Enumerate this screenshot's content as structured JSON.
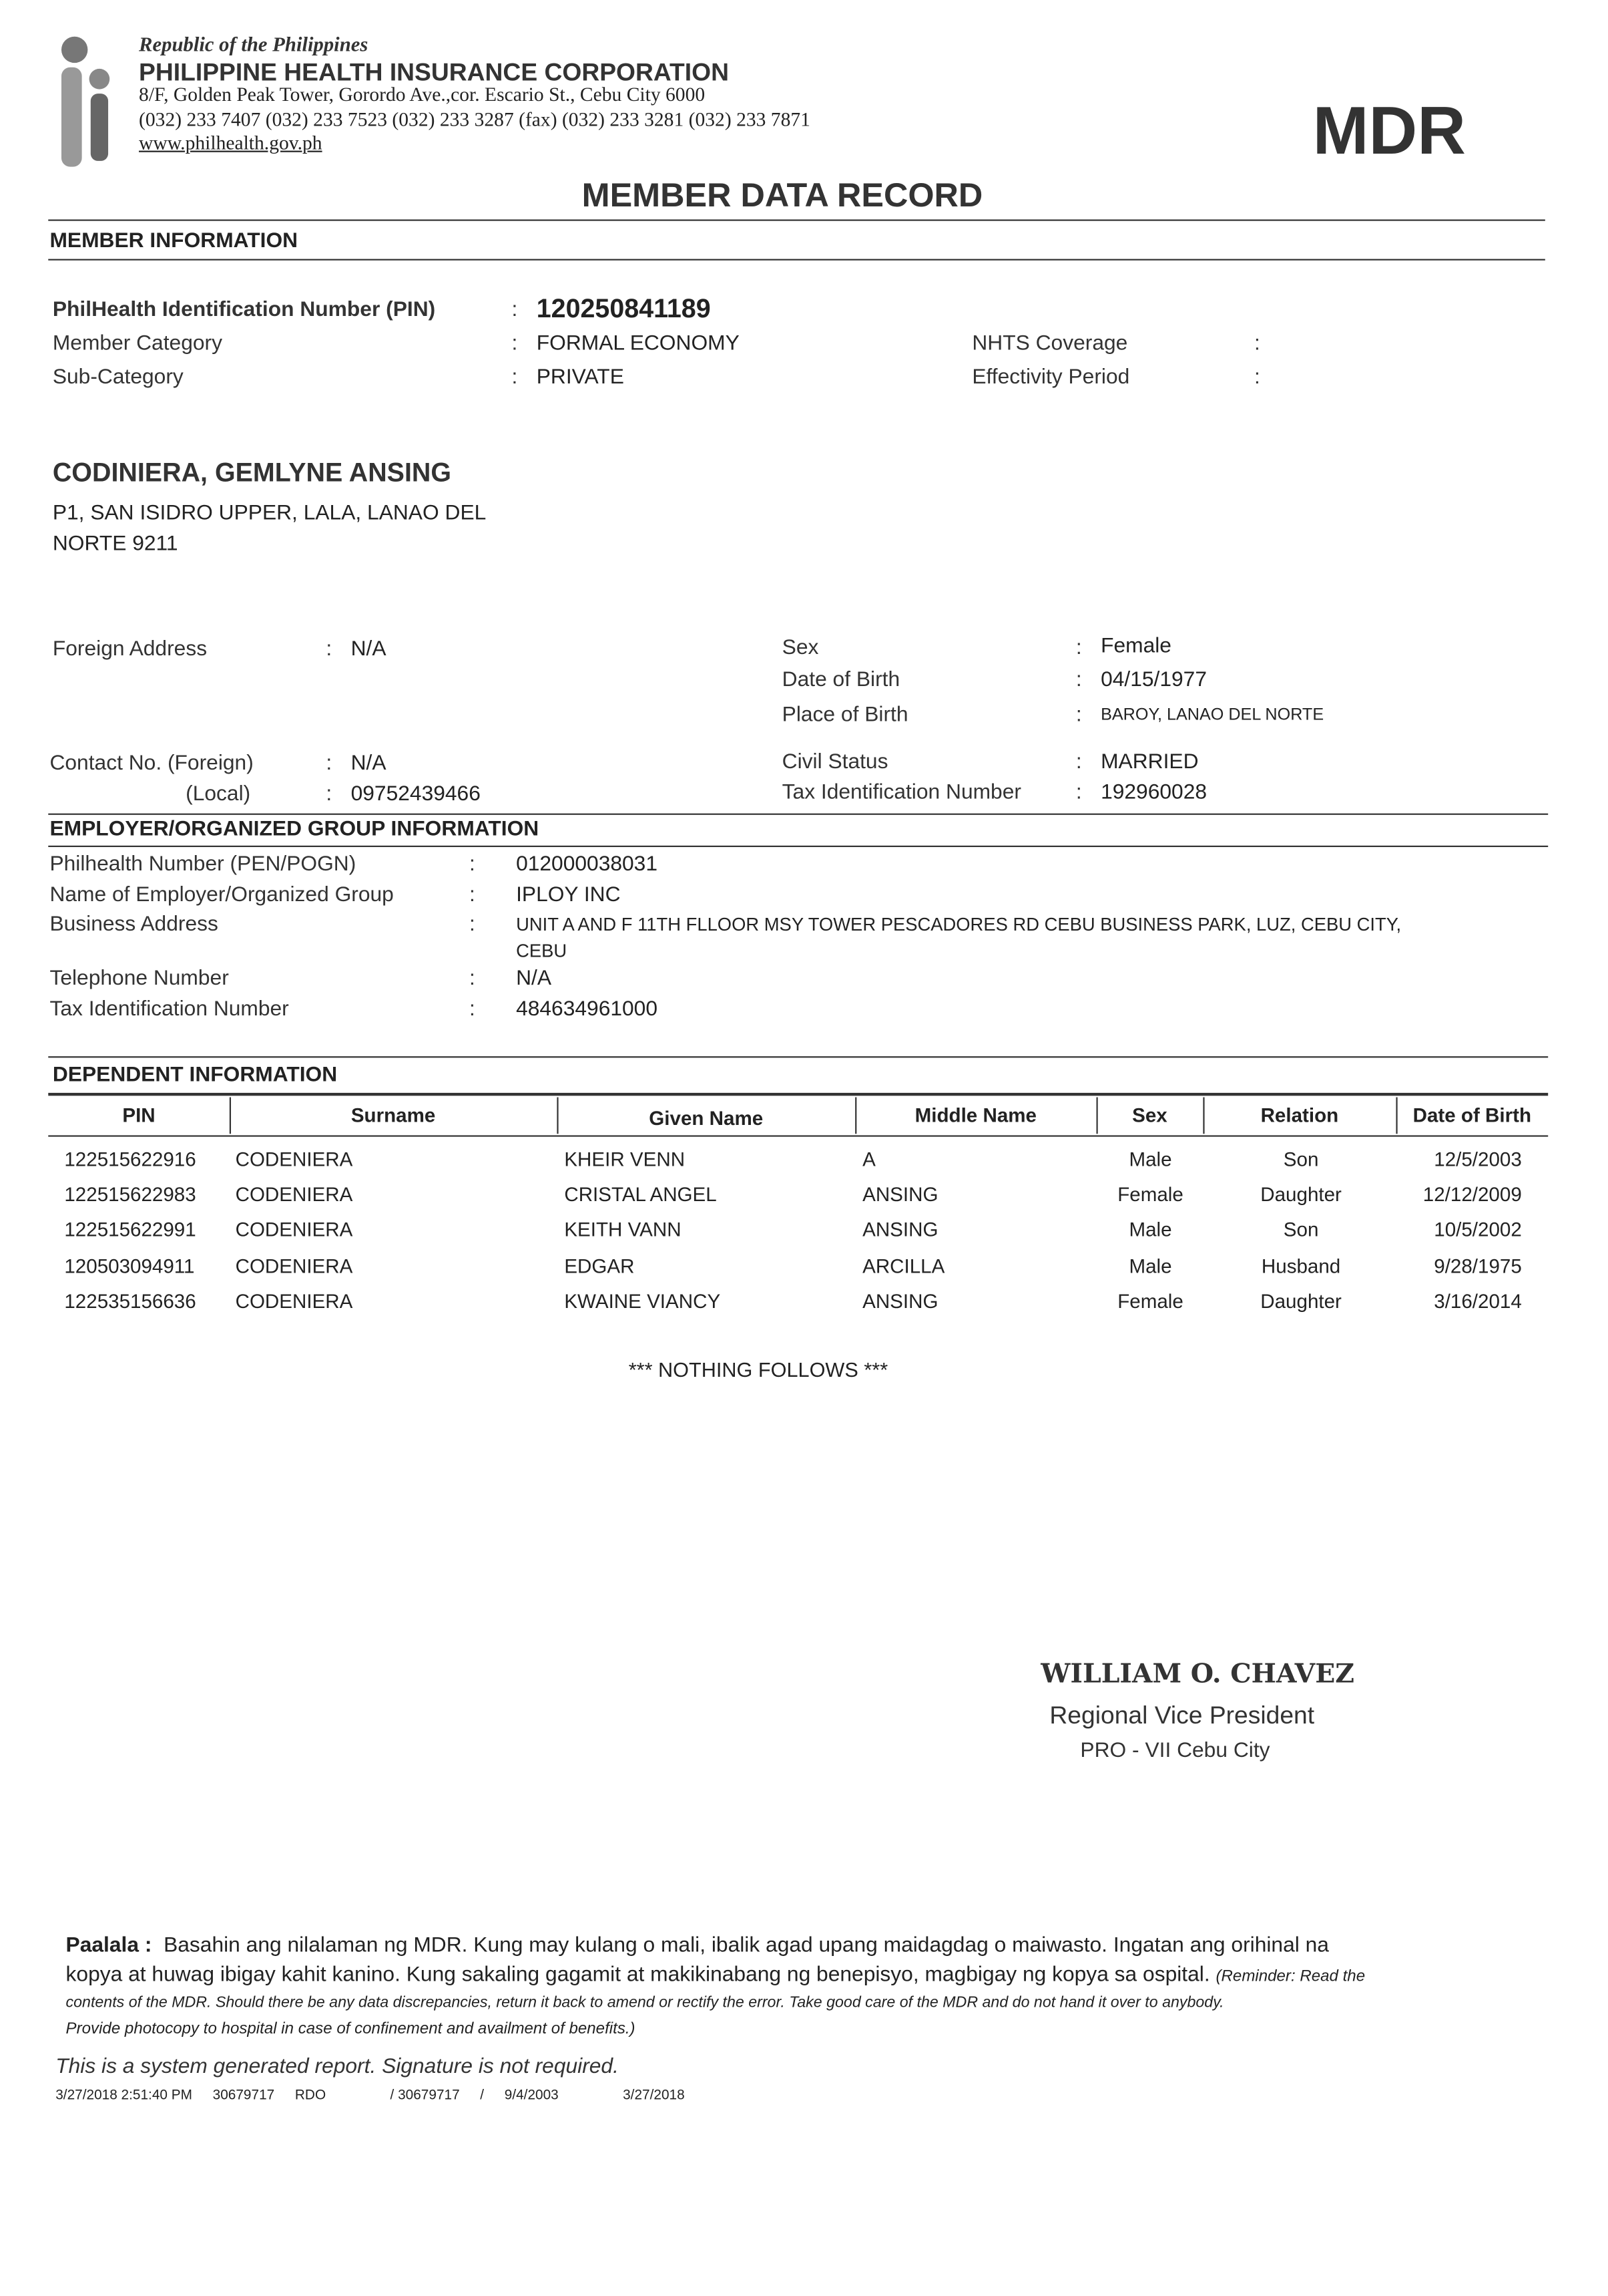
{
  "header": {
    "republic": "Republic of the Philippines",
    "org": "PHILIPPINE HEALTH INSURANCE CORPORATION",
    "address": "8/F, Golden Peak Tower, Gorordo Ave.,cor. Escario St., Cebu City 6000",
    "phones": "(032) 233 7407 (032) 233 7523 (032) 233 3287 (fax) (032) 233 3281 (032) 233 7871",
    "website": "www.philhealth.gov.ph",
    "badge": "MDR",
    "title": "MEMBER DATA RECORD"
  },
  "member": {
    "section": "MEMBER INFORMATION",
    "pin_label": "PhilHealth Identification Number (PIN)",
    "pin": "120250841189",
    "category_label": "Member Category",
    "category": "FORMAL ECONOMY",
    "subcategory_label": "Sub-Category",
    "subcategory": "PRIVATE",
    "nhts_label": "NHTS Coverage",
    "nhts": "",
    "effectivity_label": "Effectivity Period",
    "effectivity": "",
    "name": "CODINIERA, GEMLYNE ANSING",
    "address1": "P1, SAN ISIDRO UPPER, LALA, LANAO DEL",
    "address2": "NORTE 9211",
    "foreign_address_label": "Foreign Address",
    "foreign_address": "N/A",
    "sex_label": "Sex",
    "sex": "Female",
    "dob_label": "Date of Birth",
    "dob": "04/15/1977",
    "pob_label": "Place of Birth",
    "pob": "BAROY, LANAO DEL NORTE",
    "contact_foreign_label": "Contact No. (Foreign)",
    "contact_foreign": "N/A",
    "contact_local_label": "(Local)",
    "contact_local": "09752439466",
    "civil_label": "Civil Status",
    "civil": "MARRIED",
    "tin_label": "Tax Identification Number",
    "tin": "192960028"
  },
  "employer": {
    "section": "EMPLOYER/ORGANIZED GROUP INFORMATION",
    "pen_label": "Philhealth Number (PEN/POGN)",
    "pen": "012000038031",
    "name_label": "Name of Employer/Organized Group",
    "name": "IPLOY INC",
    "address_label": "Business Address",
    "address1": "UNIT A AND F 11TH FLLOOR MSY TOWER PESCADORES RD CEBU BUSINESS PARK, LUZ, CEBU CITY,",
    "address2": "CEBU",
    "phone_label": "Telephone Number",
    "phone": "N/A",
    "tin_label": "Tax Identification Number",
    "tin": "484634961000"
  },
  "dependents": {
    "section": "DEPENDENT INFORMATION",
    "columns": [
      "PIN",
      "Surname",
      "Given Name",
      "Middle Name",
      "Sex",
      "Relation",
      "Date of Birth"
    ],
    "rows": [
      [
        "122515622916",
        "CODENIERA",
        "KHEIR VENN",
        "A",
        "Male",
        "Son",
        "12/5/2003"
      ],
      [
        "122515622983",
        "CODENIERA",
        "CRISTAL ANGEL",
        "ANSING",
        "Female",
        "Daughter",
        "12/12/2009"
      ],
      [
        "122515622991",
        "CODENIERA",
        "KEITH VANN",
        "ANSING",
        "Male",
        "Son",
        "10/5/2002"
      ],
      [
        "120503094911",
        "CODENIERA",
        "EDGAR",
        "ARCILLA",
        "Male",
        "Husband",
        "9/28/1975"
      ],
      [
        "122535156636",
        "CODENIERA",
        "KWAINE VIANCY",
        "ANSING",
        "Female",
        "Daughter",
        "3/16/2014"
      ]
    ],
    "nothing_follows": "*** NOTHING FOLLOWS ***"
  },
  "signatory": {
    "name": "WILLIAM O. CHAVEZ",
    "title": "Regional Vice President",
    "office": "PRO - VII Cebu City"
  },
  "footer": {
    "paalala_label": "Paalala :",
    "paalala_line1": "Basahin ang nilalaman ng MDR. Kung may kulang o mali, ibalik agad upang maidagdag o maiwasto. Ingatan ang orihinal na",
    "paalala_line2": "kopya at huwag ibigay kahit kanino. Kung sakaling gagamit at makikinabang ng benepisyo, magbigay ng kopya sa ospital.",
    "reminder_line1": "(Reminder: Read the",
    "reminder_line2": "contents of the MDR. Should there be any data discrepancies, return it back to amend or rectify the error. Take good care of the MDR and do not hand it over to anybody.",
    "reminder_line3": "Provide photocopy to hospital in case of confinement and availment of benefits.)",
    "system_note": "This is a system generated report.  Signature is not required.",
    "meta": [
      "3/27/2018  2:51:40 PM",
      "30679717",
      "RDO",
      "/ 30679717",
      "/",
      "9/4/2003",
      "3/27/2018"
    ]
  }
}
